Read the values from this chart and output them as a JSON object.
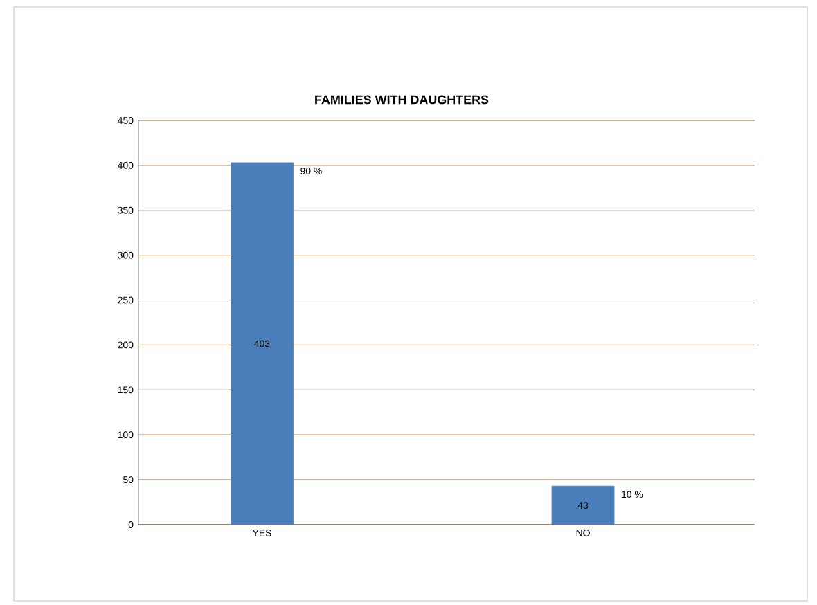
{
  "chart_data": {
    "type": "bar",
    "title": "FAMILIES WITH DAUGHTERS",
    "categories": [
      "YES",
      "NO"
    ],
    "values": [
      403,
      43
    ],
    "value_labels": [
      "403",
      "43"
    ],
    "color": "#4a7ebb",
    "ylim": [
      0,
      450
    ],
    "yticks": [
      0,
      50,
      100,
      150,
      200,
      250,
      300,
      350,
      400,
      450
    ],
    "grid": "y",
    "annotations": [
      "90 %",
      "10 %"
    ]
  }
}
